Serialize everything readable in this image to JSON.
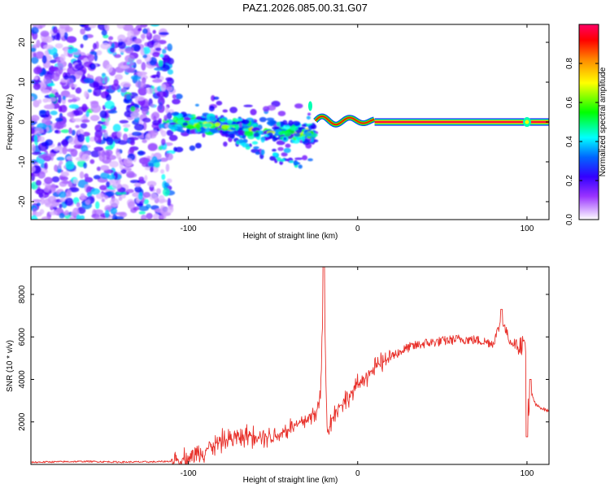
{
  "title": "PAZ1.2026.085.00.31.G07",
  "chart_data": [
    {
      "type": "heatmap",
      "name": "spectrogram",
      "xlabel": "Height of straight line (km)",
      "ylabel": "Frequency (Hz)",
      "xlim": [
        -193,
        113
      ],
      "ylim": [
        -24.5,
        24.5
      ],
      "xticks": [
        -100,
        0,
        100
      ],
      "yticks": [
        -20,
        -10,
        0,
        10,
        20
      ],
      "colorbar": {
        "label": "Normalized spectral amplitude",
        "range": [
          0.0,
          1.0
        ],
        "ticks": [
          0.0,
          0.2,
          0.4,
          0.6,
          0.8
        ],
        "stops": [
          "#ffffff",
          "#cc99ff",
          "#6600ff",
          "#0000ff",
          "#00ffff",
          "#00ff00",
          "#ffff00",
          "#ff8800",
          "#ff0000",
          "#ff0066"
        ]
      },
      "regions": [
        {
          "x": [
            -193,
            -110
          ],
          "pattern": "scattered noise",
          "freq": [
            -24.5,
            24.5
          ],
          "amplitude": [
            0.02,
            0.35
          ]
        },
        {
          "x": [
            -110,
            -25
          ],
          "pattern": "blobs drifting downward",
          "freq_center": [
            0,
            -3
          ],
          "amplitude": [
            0.2,
            0.5
          ]
        },
        {
          "x": [
            -25,
            10
          ],
          "pattern": "wavy emerging line",
          "freq_center": [
            0,
            1
          ],
          "amplitude": [
            0.5,
            0.9
          ]
        },
        {
          "x": [
            10,
            113
          ],
          "pattern": "steady carrier line",
          "freq_center": 0,
          "amplitude": 1.0
        }
      ]
    },
    {
      "type": "line",
      "name": "snr",
      "xlabel": "Height of straight line (km)",
      "ylabel": "SNR (10 * v/v)",
      "xlim": [
        -193,
        113
      ],
      "ylim": [
        0,
        9300
      ],
      "xticks": [
        -100,
        0,
        100
      ],
      "yticks": [
        2000,
        4000,
        6000,
        8000
      ],
      "color": "#e8312b",
      "series": [
        {
          "name": "SNR",
          "x": [
            -193,
            -180,
            -160,
            -140,
            -120,
            -110,
            -100,
            -90,
            -80,
            -70,
            -60,
            -50,
            -40,
            -30,
            -25,
            -22,
            -20,
            -18,
            -15,
            -10,
            -5,
            0,
            5,
            10,
            15,
            20,
            30,
            40,
            50,
            60,
            70,
            80,
            85,
            90,
            95,
            99,
            100,
            101,
            103,
            105,
            110,
            113
          ],
          "y": [
            100,
            120,
            140,
            110,
            120,
            150,
            300,
            700,
            1100,
            1300,
            1400,
            1300,
            1700,
            2100,
            2400,
            3100,
            8800,
            1500,
            2200,
            2800,
            3200,
            3700,
            4200,
            4500,
            4800,
            5100,
            5500,
            5700,
            5800,
            5900,
            5850,
            5700,
            6800,
            5800,
            5600,
            5700,
            3500,
            2300,
            3300,
            2800,
            2600,
            2500
          ]
        }
      ]
    }
  ]
}
